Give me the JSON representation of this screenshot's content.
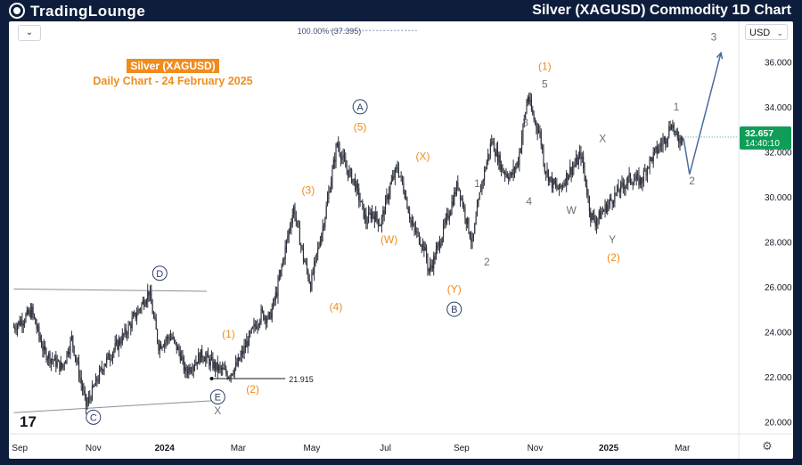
{
  "header": {
    "logo_text": "TradingLounge",
    "title": "Silver (XAGUSD) Commodity 1D Chart"
  },
  "toolbar": {
    "dropdown_icon": "chevron-down-icon",
    "currency": "USD",
    "settings_icon": "gear-icon"
  },
  "watermark": "17",
  "chart_data": {
    "type": "candlestick",
    "title": "Silver (XAGUSD)",
    "subtitle": "Daily Chart - 24 February 2025",
    "ylim": [
      19.5,
      37.8
    ],
    "y_ticks": [
      20.0,
      22.0,
      24.0,
      26.0,
      28.0,
      30.0,
      32.0,
      34.0,
      36.0
    ],
    "y_tick_labels": [
      "20.000",
      "22.000",
      "24.000",
      "26.000",
      "28.000",
      "30.000",
      "32.000",
      "34.000",
      "36.000"
    ],
    "x_ticks": [
      {
        "t": 5,
        "label": "Sep"
      },
      {
        "t": 66,
        "label": "Nov"
      },
      {
        "t": 125,
        "label": "2024"
      },
      {
        "t": 186,
        "label": "Mar"
      },
      {
        "t": 247,
        "label": "May"
      },
      {
        "t": 308,
        "label": "Jul"
      },
      {
        "t": 371,
        "label": "Sep"
      },
      {
        "t": 432,
        "label": "Nov"
      },
      {
        "t": 493,
        "label": "2025"
      },
      {
        "t": 554,
        "label": "Mar"
      }
    ],
    "current_price": "32.657",
    "countdown": "14:40:10",
    "fib_label": "100.00% (37.395)",
    "fib_level": 37.395,
    "support_label": "21.915",
    "support_level": 21.915,
    "key_points": [
      {
        "t": 0,
        "p": 24.2
      },
      {
        "t": 15,
        "p": 24.9
      },
      {
        "t": 25,
        "p": 23.1
      },
      {
        "t": 40,
        "p": 22.4
      },
      {
        "t": 48,
        "p": 23.7
      },
      {
        "t": 60,
        "p": 20.7
      },
      {
        "t": 75,
        "p": 22.6
      },
      {
        "t": 92,
        "p": 23.9
      },
      {
        "t": 105,
        "p": 25.1
      },
      {
        "t": 112,
        "p": 25.8
      },
      {
        "t": 120,
        "p": 23.4
      },
      {
        "t": 130,
        "p": 23.8
      },
      {
        "t": 138,
        "p": 23.0
      },
      {
        "t": 142,
        "p": 22.2
      },
      {
        "t": 156,
        "p": 23.0
      },
      {
        "t": 168,
        "p": 22.4
      },
      {
        "t": 178,
        "p": 22.1
      },
      {
        "t": 185,
        "p": 22.5
      },
      {
        "t": 194,
        "p": 23.6
      },
      {
        "t": 205,
        "p": 24.8
      },
      {
        "t": 212,
        "p": 24.6
      },
      {
        "t": 218,
        "p": 25.8
      },
      {
        "t": 228,
        "p": 28.5
      },
      {
        "t": 232,
        "p": 29.5
      },
      {
        "t": 240,
        "p": 27.3
      },
      {
        "t": 246,
        "p": 26.1
      },
      {
        "t": 258,
        "p": 29.2
      },
      {
        "t": 268,
        "p": 32.4
      },
      {
        "t": 275,
        "p": 31.3
      },
      {
        "t": 282,
        "p": 30.7
      },
      {
        "t": 292,
        "p": 28.9
      },
      {
        "t": 297,
        "p": 29.3
      },
      {
        "t": 304,
        "p": 28.8
      },
      {
        "t": 312,
        "p": 30.5
      },
      {
        "t": 318,
        "p": 31.3
      },
      {
        "t": 324,
        "p": 30.2
      },
      {
        "t": 330,
        "p": 28.7
      },
      {
        "t": 340,
        "p": 27.8
      },
      {
        "t": 344,
        "p": 26.7
      },
      {
        "t": 348,
        "p": 27.2
      },
      {
        "t": 356,
        "p": 28.5
      },
      {
        "t": 364,
        "p": 29.9
      },
      {
        "t": 368,
        "p": 30.6
      },
      {
        "t": 376,
        "p": 28.8
      },
      {
        "t": 380,
        "p": 27.9
      },
      {
        "t": 387,
        "p": 30.4
      },
      {
        "t": 396,
        "p": 32.5
      },
      {
        "t": 405,
        "p": 31.2
      },
      {
        "t": 412,
        "p": 30.9
      },
      {
        "t": 418,
        "p": 31.6
      },
      {
        "t": 426,
        "p": 34.5
      },
      {
        "t": 430,
        "p": 33.6
      },
      {
        "t": 436,
        "p": 32.8
      },
      {
        "t": 440,
        "p": 31.3
      },
      {
        "t": 446,
        "p": 30.6
      },
      {
        "t": 452,
        "p": 30.3
      },
      {
        "t": 460,
        "p": 31.1
      },
      {
        "t": 466,
        "p": 31.5
      },
      {
        "t": 470,
        "p": 31.9
      },
      {
        "t": 474,
        "p": 30.6
      },
      {
        "t": 478,
        "p": 29.2
      },
      {
        "t": 482,
        "p": 28.9
      },
      {
        "t": 490,
        "p": 29.5
      },
      {
        "t": 500,
        "p": 30.2
      },
      {
        "t": 510,
        "p": 30.8
      },
      {
        "t": 520,
        "p": 30.7
      },
      {
        "t": 526,
        "p": 31.5
      },
      {
        "t": 532,
        "p": 32.0
      },
      {
        "t": 540,
        "p": 32.6
      },
      {
        "t": 545,
        "p": 33.3
      },
      {
        "t": 550,
        "p": 32.5
      },
      {
        "t": 554,
        "p": 32.66
      }
    ],
    "projection": [
      {
        "t": 555,
        "p": 32.6
      },
      {
        "t": 560,
        "p": 31.0
      },
      {
        "t": 586,
        "p": 36.4
      }
    ],
    "trendlines": [
      {
        "name": "upper-triangle-line",
        "t1": 0,
        "p1": 25.9,
        "t2": 160,
        "p2": 25.8
      },
      {
        "name": "lower-triangle-line",
        "t1": 0,
        "p1": 20.4,
        "t2": 170,
        "p2": 20.95
      }
    ],
    "wave_labels": [
      {
        "text": "D",
        "t": 121,
        "p": 26.6,
        "style": "circle"
      },
      {
        "text": "C",
        "t": 66,
        "p": 20.2,
        "style": "circle"
      },
      {
        "text": "E",
        "t": 169,
        "p": 21.1,
        "style": "circle"
      },
      {
        "text": "X",
        "t": 169,
        "p": 20.5,
        "style": "gray"
      },
      {
        "text": "(1)",
        "t": 178,
        "p": 23.9,
        "style": "orange"
      },
      {
        "text": "(2)",
        "t": 198,
        "p": 21.45,
        "style": "orange"
      },
      {
        "text": "(3)",
        "t": 244,
        "p": 30.3,
        "style": "orange"
      },
      {
        "text": "(4)",
        "t": 267,
        "p": 25.1,
        "style": "orange"
      },
      {
        "text": "(5)",
        "t": 287,
        "p": 33.1,
        "style": "orange"
      },
      {
        "text": "A",
        "t": 287,
        "p": 34.0,
        "style": "circle"
      },
      {
        "text": "(W)",
        "t": 311,
        "p": 28.1,
        "style": "orange"
      },
      {
        "text": "(X)",
        "t": 339,
        "p": 31.8,
        "style": "orange"
      },
      {
        "text": "(Y)",
        "t": 365,
        "p": 25.9,
        "style": "orange"
      },
      {
        "text": "B",
        "t": 365,
        "p": 25.0,
        "style": "circle"
      },
      {
        "text": "1",
        "t": 384,
        "p": 30.6,
        "style": "gray"
      },
      {
        "text": "2",
        "t": 392,
        "p": 27.1,
        "style": "gray"
      },
      {
        "text": "3",
        "t": 424,
        "p": 33.3,
        "style": "gray"
      },
      {
        "text": "4",
        "t": 427,
        "p": 29.8,
        "style": "gray"
      },
      {
        "text": "(1)",
        "t": 440,
        "p": 35.8,
        "style": "orange"
      },
      {
        "text": "5",
        "t": 440,
        "p": 35.0,
        "style": "gray"
      },
      {
        "text": "W",
        "t": 462,
        "p": 29.4,
        "style": "gray"
      },
      {
        "text": "X",
        "t": 488,
        "p": 32.6,
        "style": "gray"
      },
      {
        "text": "Y",
        "t": 496,
        "p": 28.1,
        "style": "gray"
      },
      {
        "text": "(2)",
        "t": 497,
        "p": 27.3,
        "style": "orange"
      },
      {
        "text": "1",
        "t": 549,
        "p": 34.0,
        "style": "gray"
      },
      {
        "text": "2",
        "t": 562,
        "p": 30.7,
        "style": "gray"
      },
      {
        "text": "3",
        "t": 580,
        "p": 37.1,
        "style": "gray"
      }
    ]
  }
}
